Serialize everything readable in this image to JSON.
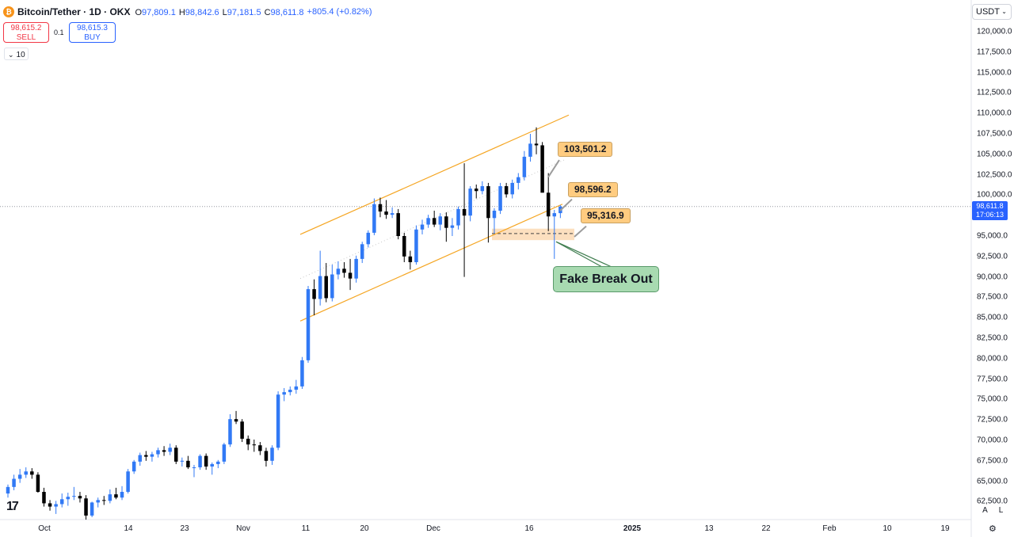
{
  "header": {
    "symbol_title": "Bitcoin/Tether · 1D · OKX",
    "logo_glyph": "₿",
    "ohlc": [
      {
        "key": "O",
        "value": "97,809.1"
      },
      {
        "key": "H",
        "value": "98,842.6"
      },
      {
        "key": "L",
        "value": "97,181.5"
      },
      {
        "key": "C",
        "value": "98,611.8"
      }
    ],
    "change": "+805.4 (+0.82%)"
  },
  "trade": {
    "sell_price": "98,615.2",
    "sell_label": "SELL",
    "spread": "0.1",
    "buy_price": "98,615.3",
    "buy_label": "BUY"
  },
  "indicator": {
    "label": "10",
    "chevron": "⌄"
  },
  "currency": {
    "label": "USDT",
    "chevron": "⌄"
  },
  "price_scale": {
    "labels": [
      "120,000.0",
      "117,500.0",
      "115,000.0",
      "112,500.0",
      "110,000.0",
      "107,500.0",
      "105,000.0",
      "102,500.0",
      "100,000.0",
      "97,500.0",
      "95,000.0",
      "92,500.0",
      "90,000.0",
      "87,500.0",
      "85,000.0",
      "82,500.0",
      "80,000.0",
      "77,500.0",
      "75,000.0",
      "72,500.0",
      "70,000.0",
      "67,500.0",
      "65,000.0",
      "62,500.0"
    ],
    "values": [
      120000,
      117500,
      115000,
      112500,
      110000,
      107500,
      105000,
      102500,
      100000,
      97500,
      95000,
      92500,
      90000,
      87500,
      85000,
      82500,
      80000,
      77500,
      75000,
      72500,
      70000,
      67500,
      65000,
      62500
    ]
  },
  "last_price_tag": {
    "price": "98,611.8",
    "countdown": "17:06:13",
    "value": 98611.8
  },
  "time_axis": [
    {
      "label": "Oct",
      "bold": false
    },
    {
      "label": "14",
      "bold": false
    },
    {
      "label": "23",
      "bold": false
    },
    {
      "label": "Nov",
      "bold": false
    },
    {
      "label": "11",
      "bold": false
    },
    {
      "label": "20",
      "bold": false
    },
    {
      "label": "Dec",
      "bold": false
    },
    {
      "label": "16",
      "bold": false
    },
    {
      "label": "2025",
      "bold": true
    },
    {
      "label": "13",
      "bold": false
    },
    {
      "label": "22",
      "bold": false
    },
    {
      "label": "Feb",
      "bold": false
    },
    {
      "label": "10",
      "bold": false
    },
    {
      "label": "19",
      "bold": false
    }
  ],
  "annotations": {
    "high_label": "103,501.2",
    "mid_label": "98,596.2",
    "low_label": "95,316.9",
    "fake_breakout": "Fake Break Out"
  },
  "controls": {
    "auto": "A",
    "log": "L",
    "settings_glyph": "⚙",
    "tv_logo": "17"
  },
  "colors": {
    "up": "#3179f5",
    "down": "#000000",
    "channel": "#f5a623",
    "callout": "#ffcc80",
    "zone": "#fcd9b4",
    "fake_box": "#a8dab1",
    "accent": "#2962ff"
  },
  "chart_data": {
    "type": "candlestick",
    "symbol": "Bitcoin/Tether",
    "interval": "1D",
    "exchange": "OKX",
    "ylim": [
      62500,
      120000
    ],
    "candles": [
      {
        "o": 63500,
        "h": 64600,
        "l": 63000,
        "c": 64300
      },
      {
        "o": 64300,
        "h": 65800,
        "l": 63900,
        "c": 65300
      },
      {
        "o": 65300,
        "h": 66500,
        "l": 64800,
        "c": 65800
      },
      {
        "o": 65800,
        "h": 66700,
        "l": 65400,
        "c": 66200
      },
      {
        "o": 66200,
        "h": 66600,
        "l": 65300,
        "c": 65800
      },
      {
        "o": 65800,
        "h": 66100,
        "l": 63600,
        "c": 63700
      },
      {
        "o": 63700,
        "h": 64200,
        "l": 61900,
        "c": 62300
      },
      {
        "o": 62300,
        "h": 62700,
        "l": 61400,
        "c": 61900
      },
      {
        "o": 61900,
        "h": 62600,
        "l": 61000,
        "c": 62200
      },
      {
        "o": 62200,
        "h": 63500,
        "l": 61800,
        "c": 62800
      },
      {
        "o": 62800,
        "h": 63600,
        "l": 62000,
        "c": 63100
      },
      {
        "o": 63100,
        "h": 64300,
        "l": 62700,
        "c": 63200
      },
      {
        "o": 63200,
        "h": 63700,
        "l": 62400,
        "c": 62900
      },
      {
        "o": 62900,
        "h": 63300,
        "l": 60300,
        "c": 60800
      },
      {
        "o": 60800,
        "h": 62500,
        "l": 60600,
        "c": 62400
      },
      {
        "o": 62400,
        "h": 63000,
        "l": 61800,
        "c": 62700
      },
      {
        "o": 62700,
        "h": 63200,
        "l": 62100,
        "c": 62600
      },
      {
        "o": 62600,
        "h": 64000,
        "l": 62300,
        "c": 63400
      },
      {
        "o": 63400,
        "h": 64200,
        "l": 62800,
        "c": 63000
      },
      {
        "o": 63000,
        "h": 64400,
        "l": 62700,
        "c": 63700
      },
      {
        "o": 63700,
        "h": 66500,
        "l": 63500,
        "c": 66200
      },
      {
        "o": 66200,
        "h": 67600,
        "l": 65900,
        "c": 67400
      },
      {
        "o": 67400,
        "h": 68500,
        "l": 66900,
        "c": 68200
      },
      {
        "o": 68200,
        "h": 68700,
        "l": 67500,
        "c": 68000
      },
      {
        "o": 68000,
        "h": 68600,
        "l": 67400,
        "c": 68300
      },
      {
        "o": 68300,
        "h": 69100,
        "l": 67900,
        "c": 68800
      },
      {
        "o": 68800,
        "h": 69300,
        "l": 68100,
        "c": 68600
      },
      {
        "o": 68600,
        "h": 69600,
        "l": 68200,
        "c": 69100
      },
      {
        "o": 69100,
        "h": 69400,
        "l": 67100,
        "c": 67400
      },
      {
        "o": 67400,
        "h": 67900,
        "l": 66800,
        "c": 67500
      },
      {
        "o": 67500,
        "h": 68100,
        "l": 66500,
        "c": 66700
      },
      {
        "o": 66700,
        "h": 67000,
        "l": 65500,
        "c": 66700
      },
      {
        "o": 66700,
        "h": 68300,
        "l": 66400,
        "c": 68100
      },
      {
        "o": 68100,
        "h": 68400,
        "l": 66400,
        "c": 66800
      },
      {
        "o": 66800,
        "h": 67300,
        "l": 65800,
        "c": 67100
      },
      {
        "o": 67100,
        "h": 67600,
        "l": 66600,
        "c": 67400
      },
      {
        "o": 67400,
        "h": 69700,
        "l": 67100,
        "c": 69500
      },
      {
        "o": 69500,
        "h": 73200,
        "l": 69200,
        "c": 72600
      },
      {
        "o": 72600,
        "h": 73600,
        "l": 72000,
        "c": 72300
      },
      {
        "o": 72300,
        "h": 72600,
        "l": 69800,
        "c": 70200
      },
      {
        "o": 70200,
        "h": 70600,
        "l": 68800,
        "c": 69500
      },
      {
        "o": 69500,
        "h": 70100,
        "l": 68600,
        "c": 69400
      },
      {
        "o": 69400,
        "h": 69800,
        "l": 68200,
        "c": 68700
      },
      {
        "o": 68700,
        "h": 69100,
        "l": 66800,
        "c": 67500
      },
      {
        "o": 67500,
        "h": 69400,
        "l": 67000,
        "c": 69100
      },
      {
        "o": 69100,
        "h": 76000,
        "l": 68800,
        "c": 75600
      },
      {
        "o": 75600,
        "h": 76400,
        "l": 74800,
        "c": 75900
      },
      {
        "o": 75900,
        "h": 76600,
        "l": 75500,
        "c": 76200
      },
      {
        "o": 76200,
        "h": 77400,
        "l": 75700,
        "c": 76600
      },
      {
        "o": 76600,
        "h": 80200,
        "l": 76300,
        "c": 79800
      },
      {
        "o": 79800,
        "h": 88900,
        "l": 79500,
        "c": 88500
      },
      {
        "o": 88500,
        "h": 89700,
        "l": 85300,
        "c": 87300
      },
      {
        "o": 87300,
        "h": 93200,
        "l": 86500,
        "c": 90100
      },
      {
        "o": 90100,
        "h": 91700,
        "l": 86900,
        "c": 87400
      },
      {
        "o": 87400,
        "h": 91500,
        "l": 87000,
        "c": 90300
      },
      {
        "o": 90300,
        "h": 91900,
        "l": 89700,
        "c": 91000
      },
      {
        "o": 91000,
        "h": 91800,
        "l": 89900,
        "c": 90500
      },
      {
        "o": 90500,
        "h": 92200,
        "l": 88400,
        "c": 89800
      },
      {
        "o": 89800,
        "h": 92600,
        "l": 89300,
        "c": 92200
      },
      {
        "o": 92200,
        "h": 94300,
        "l": 91700,
        "c": 94000
      },
      {
        "o": 94000,
        "h": 95700,
        "l": 93600,
        "c": 95400
      },
      {
        "o": 95400,
        "h": 99600,
        "l": 95100,
        "c": 98900
      },
      {
        "o": 98900,
        "h": 99700,
        "l": 97300,
        "c": 98000
      },
      {
        "o": 98000,
        "h": 99400,
        "l": 97100,
        "c": 97600
      },
      {
        "o": 97600,
        "h": 98500,
        "l": 97200,
        "c": 97800
      },
      {
        "o": 97800,
        "h": 98300,
        "l": 94600,
        "c": 95000
      },
      {
        "o": 95000,
        "h": 95400,
        "l": 91800,
        "c": 92500
      },
      {
        "o": 92500,
        "h": 93200,
        "l": 90900,
        "c": 91800
      },
      {
        "o": 91800,
        "h": 96300,
        "l": 91500,
        "c": 95800
      },
      {
        "o": 95800,
        "h": 97000,
        "l": 95200,
        "c": 96400
      },
      {
        "o": 96400,
        "h": 97600,
        "l": 96000,
        "c": 97200
      },
      {
        "o": 97200,
        "h": 98100,
        "l": 96100,
        "c": 96400
      },
      {
        "o": 96400,
        "h": 97800,
        "l": 95700,
        "c": 97400
      },
      {
        "o": 97400,
        "h": 97900,
        "l": 94300,
        "c": 96000
      },
      {
        "o": 96000,
        "h": 97200,
        "l": 95000,
        "c": 96300
      },
      {
        "o": 96300,
        "h": 98600,
        "l": 95800,
        "c": 98300
      },
      {
        "o": 98300,
        "h": 103900,
        "l": 90000,
        "c": 97500
      },
      {
        "o": 97500,
        "h": 101100,
        "l": 96800,
        "c": 100800
      },
      {
        "o": 100800,
        "h": 101300,
        "l": 99600,
        "c": 100500
      },
      {
        "o": 100500,
        "h": 101700,
        "l": 100100,
        "c": 101100
      },
      {
        "o": 101100,
        "h": 101500,
        "l": 94200,
        "c": 97200
      },
      {
        "o": 97200,
        "h": 98400,
        "l": 95300,
        "c": 98100
      },
      {
        "o": 98100,
        "h": 101500,
        "l": 97700,
        "c": 101100
      },
      {
        "o": 101100,
        "h": 101500,
        "l": 99700,
        "c": 100100
      },
      {
        "o": 100100,
        "h": 101900,
        "l": 99600,
        "c": 101500
      },
      {
        "o": 101500,
        "h": 102700,
        "l": 100700,
        "c": 102200
      },
      {
        "o": 102200,
        "h": 105400,
        "l": 101800,
        "c": 104700
      },
      {
        "o": 104700,
        "h": 107500,
        "l": 104100,
        "c": 106300
      },
      {
        "o": 106300,
        "h": 108300,
        "l": 105000,
        "c": 106100
      },
      {
        "o": 106100,
        "h": 106500,
        "l": 100700,
        "c": 100300
      },
      {
        "o": 100300,
        "h": 102700,
        "l": 95600,
        "c": 97400
      },
      {
        "o": 97400,
        "h": 98200,
        "l": 92200,
        "c": 97800
      },
      {
        "o": 97800,
        "h": 98800,
        "l": 97200,
        "c": 98600
      }
    ]
  }
}
